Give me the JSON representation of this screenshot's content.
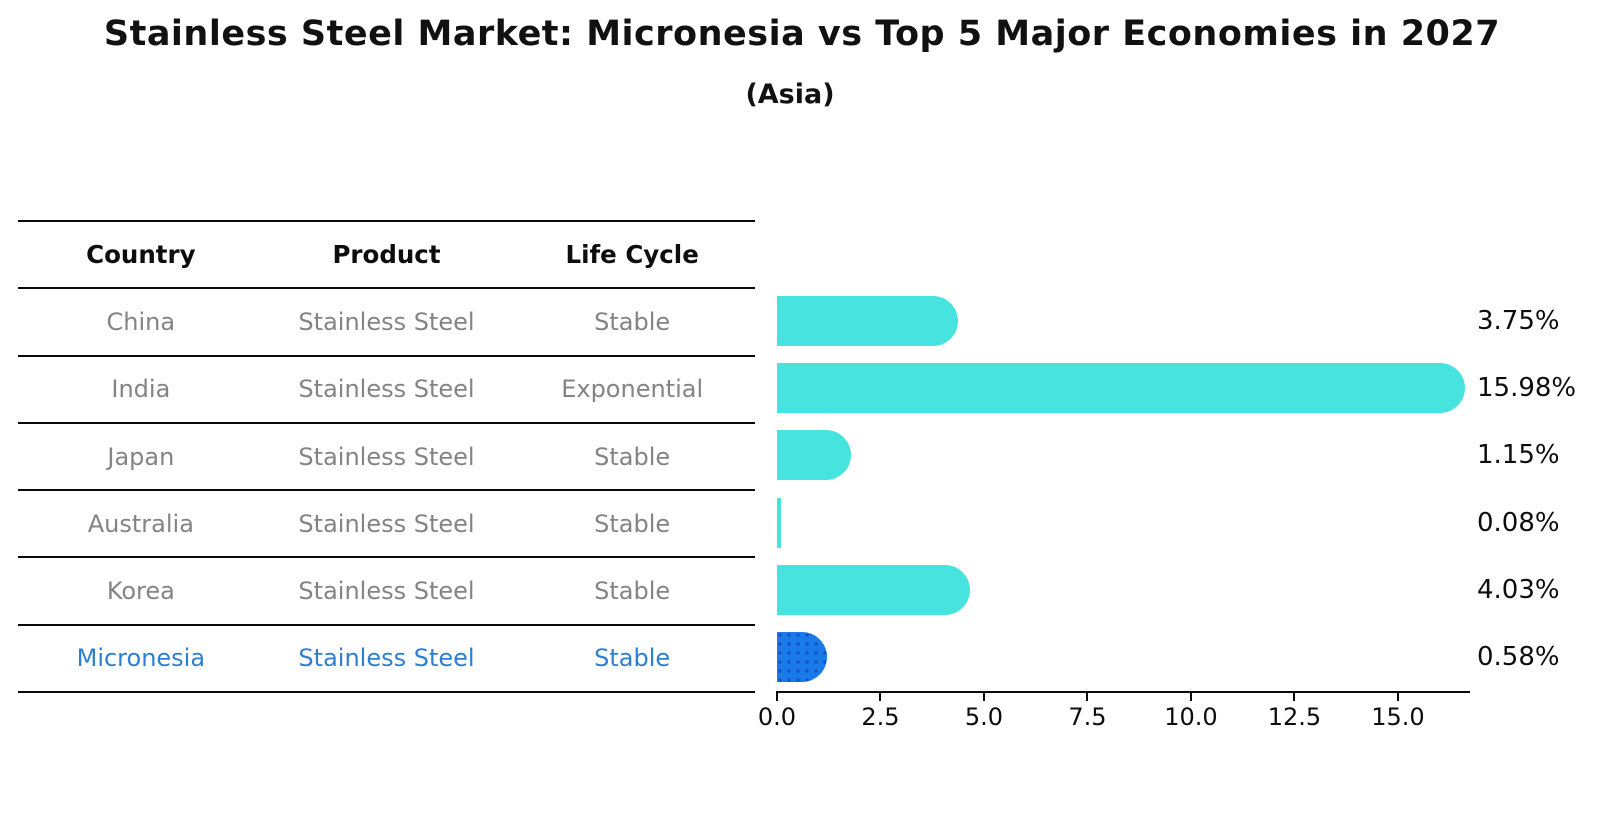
{
  "title": "Stainless Steel Market: Micronesia vs Top 5 Major Economies in 2027",
  "subtitle": "(Asia)",
  "table": {
    "headers": [
      "Country",
      "Product",
      "Life Cycle"
    ],
    "rows": [
      {
        "country": "China",
        "product": "Stainless Steel",
        "life_cycle": "Stable",
        "highlight": false
      },
      {
        "country": "India",
        "product": "Stainless Steel",
        "life_cycle": "Exponential",
        "highlight": false
      },
      {
        "country": "Japan",
        "product": "Stainless Steel",
        "life_cycle": "Stable",
        "highlight": false
      },
      {
        "country": "Australia",
        "product": "Stainless Steel",
        "life_cycle": "Stable",
        "highlight": false
      },
      {
        "country": "Korea",
        "product": "Stainless Steel",
        "life_cycle": "Stable",
        "highlight": false
      },
      {
        "country": "Micronesia",
        "product": "Stainless Steel",
        "life_cycle": "Stable",
        "highlight": true
      }
    ]
  },
  "chart_data": {
    "type": "bar",
    "orientation": "horizontal",
    "title": "Stainless Steel Market: Micronesia vs Top 5 Major Economies in 2027",
    "subtitle": "(Asia)",
    "categories": [
      "China",
      "India",
      "Japan",
      "Australia",
      "Korea",
      "Micronesia"
    ],
    "values": [
      3.75,
      15.98,
      1.15,
      0.08,
      4.03,
      0.58
    ],
    "value_labels": [
      "3.75%",
      "15.98%",
      "1.15%",
      "0.08%",
      "4.03%",
      "0.58%"
    ],
    "units": "percent",
    "x_ticks": [
      0.0,
      2.5,
      5.0,
      7.5,
      10.0,
      12.5,
      15.0
    ],
    "x_tick_labels": [
      "0.0",
      "2.5",
      "5.0",
      "7.5",
      "10.0",
      "12.5",
      "15.0"
    ],
    "xlim": [
      0,
      16.74
    ],
    "grid": false,
    "legend": "none",
    "bar_color": "#47E4DF",
    "highlight_color": "#1B7AEA",
    "highlight_index": 5,
    "highlight_text_color": "#2F7FD0"
  }
}
